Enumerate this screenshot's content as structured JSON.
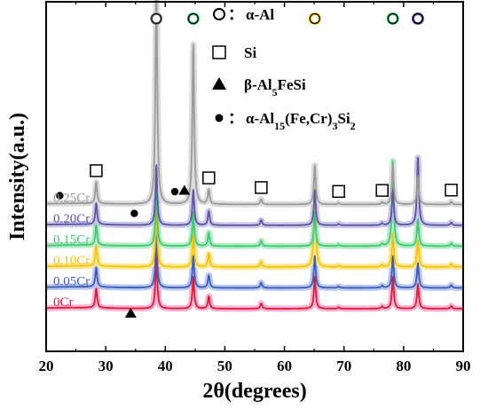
{
  "chart_data": {
    "type": "line",
    "xlabel": "2θ(degrees)",
    "ylabel": "Intensity(a.u.)",
    "xlim": [
      20,
      90
    ],
    "x_ticks": [
      20,
      30,
      40,
      50,
      60,
      70,
      80,
      90
    ],
    "legend": [
      {
        "marker": "circle-open",
        "label": "α-Al"
      },
      {
        "marker": "square-open",
        "label": "Si"
      },
      {
        "marker": "triangle-filled",
        "label": "β-Al5FeSi"
      },
      {
        "marker": "circle-filled",
        "label": "α-Al15(Fe,Cr)3Si2"
      }
    ],
    "series": [
      {
        "name": "0Cr",
        "color": "#e8172d",
        "halo": "#f6b3d8",
        "offset": 0
      },
      {
        "name": "0.05Cr",
        "color": "#3b5bbd",
        "halo": "#b9c7ef",
        "offset": 1
      },
      {
        "name": "0.10Cr",
        "color": "#f5c400",
        "halo": "#fbe79a",
        "offset": 2
      },
      {
        "name": "0.15Cr",
        "color": "#3ec872",
        "halo": "#b4ecc8",
        "offset": 3
      },
      {
        "name": "0.20Cr",
        "color": "#5c56a4",
        "halo": "#c9c6e8",
        "offset": 4
      },
      {
        "name": "0.25Cr",
        "color": "#9a9a9a",
        "halo": "#dcdcdc",
        "offset": 5
      }
    ],
    "peaks": [
      {
        "x": 28.4,
        "phase": "Si",
        "heights": [
          0.55,
          0.55,
          0.58,
          0.58,
          0.6,
          0.6
        ]
      },
      {
        "x": 38.5,
        "phase": "α-Al",
        "heights": [
          1.5,
          1.5,
          1.6,
          1.6,
          1.7,
          6.2
        ]
      },
      {
        "x": 44.7,
        "phase": "α-Al",
        "heights": [
          0.9,
          0.9,
          0.95,
          0.95,
          1.0,
          4.5
        ]
      },
      {
        "x": 47.3,
        "phase": "Si",
        "heights": [
          0.35,
          0.35,
          0.38,
          0.38,
          0.4,
          0.4
        ]
      },
      {
        "x": 56.1,
        "phase": "Si",
        "heights": [
          0.15,
          0.15,
          0.15,
          0.15,
          0.15,
          0.15
        ]
      },
      {
        "x": 65.1,
        "phase": "α-Al",
        "heights": [
          0.9,
          0.9,
          2.2,
          0.95,
          1.0,
          1.1
        ]
      },
      {
        "x": 69.1,
        "phase": "Si",
        "heights": [
          0.04,
          0.04,
          0.04,
          0.04,
          0.04,
          0.04
        ]
      },
      {
        "x": 76.4,
        "phase": "Si",
        "heights": [
          0.06,
          0.06,
          0.06,
          0.06,
          0.06,
          0.06
        ]
      },
      {
        "x": 78.2,
        "phase": "α-Al",
        "heights": [
          0.9,
          0.9,
          0.95,
          2.4,
          1.0,
          1.1
        ]
      },
      {
        "x": 82.4,
        "phase": "α-Al",
        "heights": [
          0.7,
          0.7,
          0.75,
          0.75,
          1.9,
          0.8
        ]
      },
      {
        "x": 88.0,
        "phase": "Si",
        "heights": [
          0.08,
          0.08,
          0.08,
          0.08,
          0.08,
          0.08
        ]
      }
    ],
    "point_markers": [
      {
        "x": 38.5,
        "marker": "circle-open",
        "color": "#9a9a9a"
      },
      {
        "x": 44.7,
        "marker": "circle-open",
        "color": "#3ec872"
      },
      {
        "x": 65.1,
        "marker": "circle-open",
        "color": "#f5c400"
      },
      {
        "x": 78.2,
        "marker": "circle-open",
        "color": "#3ec872"
      },
      {
        "x": 82.4,
        "marker": "circle-open",
        "color": "#5c56a4"
      },
      {
        "x": 28.4,
        "marker": "square-open",
        "series": "0.25Cr"
      },
      {
        "x": 47.3,
        "marker": "square-open",
        "series": "0.25Cr"
      },
      {
        "x": 56.1,
        "marker": "square-open",
        "series": "0.25Cr"
      },
      {
        "x": 69.1,
        "marker": "square-open",
        "series": "0.25Cr"
      },
      {
        "x": 76.4,
        "marker": "square-open",
        "series": "0.25Cr"
      },
      {
        "x": 88.0,
        "marker": "square-open",
        "series": "0.25Cr"
      },
      {
        "x": 22.3,
        "marker": "circle-filled",
        "series": "0.25Cr"
      },
      {
        "x": 41.6,
        "marker": "circle-filled",
        "series": "0.25Cr"
      },
      {
        "x": 43.2,
        "marker": "triangle-filled",
        "series": "0.25Cr"
      },
      {
        "x": 34.8,
        "marker": "circle-filled",
        "series": "0.20Cr"
      },
      {
        "x": 34.2,
        "marker": "triangle-filled",
        "series": "0Cr"
      }
    ]
  }
}
